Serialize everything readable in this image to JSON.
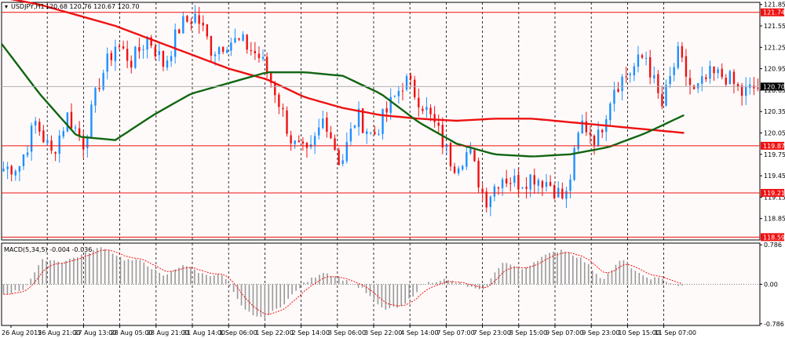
{
  "chart_data": [
    {
      "type": "candlestick",
      "symbol_label": "USDJPY,H1",
      "ohlc_readout": "120.68 120.76 120.67 120.70",
      "ylim": [
        118.55,
        121.88
      ],
      "y_ticks": [
        "121.85",
        "121.55",
        "121.25",
        "120.95",
        "120.65",
        "120.35",
        "120.05",
        "119.75",
        "119.45",
        "119.15",
        "118.85"
      ],
      "x_ticks": [
        "26 Aug 2015",
        "26 Aug 21:00",
        "27 Aug 13:00",
        "28 Aug 05:00",
        "28 Aug 21:00",
        "31 Aug 14:00",
        "1 Sep 06:00",
        "1 Sep 22:00",
        "2 Sep 14:00",
        "3 Sep 06:00",
        "3 Sep 22:00",
        "4 Sep 14:00",
        "7 Sep 07:00",
        "7 Sep 23:00",
        "8 Sep 15:00",
        "9 Sep 07:00",
        "9 Sep 23:00",
        "10 Sep 15:00",
        "11 Sep 07:00"
      ],
      "levels": [
        {
          "label": "121.74",
          "value": 121.74
        },
        {
          "label": "119.87",
          "value": 119.87
        },
        {
          "label": "119.21",
          "value": 119.21
        },
        {
          "label": "118.59",
          "value": 118.59
        }
      ],
      "last_price": {
        "label": "120.70",
        "value": 120.7
      },
      "close_path": [
        119.55,
        119.6,
        120.2,
        119.75,
        120.3,
        119.9,
        120.8,
        121.3,
        121.05,
        121.4,
        121.0,
        121.55,
        121.7,
        121.2,
        121.35,
        121.3,
        121.1,
        120.6,
        119.9,
        119.7,
        120.3,
        119.6,
        120.3,
        120.0,
        120.4,
        120.8,
        120.5,
        120.1,
        119.6,
        119.8,
        119.1,
        119.45,
        119.35,
        119.45,
        119.35,
        119.1,
        120.2,
        119.95,
        120.7,
        120.9,
        121.15,
        120.4,
        121.15,
        120.6,
        120.85,
        120.85,
        120.6,
        120.7
      ],
      "series": [
        {
          "name": "",
          "color": "#ee1111",
          "values": [
            121.95,
            121.85,
            121.7,
            121.55,
            121.35,
            121.15,
            120.95,
            120.8,
            120.55,
            120.4,
            120.3,
            120.25,
            120.22,
            120.25,
            120.25,
            120.2,
            120.15,
            120.1,
            120.05
          ]
        },
        {
          "name": "",
          "color": "#116611",
          "values": [
            121.3,
            120.6,
            120.0,
            119.95,
            120.3,
            120.6,
            120.75,
            120.9,
            120.9,
            120.85,
            120.6,
            120.2,
            119.9,
            119.75,
            119.72,
            119.75,
            119.85,
            120.05,
            120.3
          ]
        }
      ],
      "colors": {
        "bull": "#1e90ff",
        "bear": "#ee1111",
        "level": "#ee1111",
        "panel_bg": "#fffafa"
      }
    },
    {
      "type": "histogram",
      "label": "MACD(5,34,5) -0.004 -0.036",
      "ylim": [
        -0.82,
        0.82
      ],
      "y_ticks": [
        "0.786",
        "0.00",
        "-0.786"
      ],
      "macd_path": [
        -0.2,
        -0.1,
        0.5,
        0.45,
        0.6,
        0.75,
        0.5,
        0.45,
        0.15,
        0.4,
        0.2,
        0.18,
        -0.5,
        -0.7,
        -0.4,
        0.0,
        0.25,
        0.1,
        -0.1,
        -0.5,
        -0.45,
        0.0,
        0.1,
        0.0,
        -0.15,
        0.45,
        0.3,
        0.55,
        0.7,
        0.5,
        0.1,
        0.5,
        0.15,
        0.1,
        -0.05
      ],
      "signal_color": "#ee1111",
      "bar_color": "#999999"
    }
  ]
}
